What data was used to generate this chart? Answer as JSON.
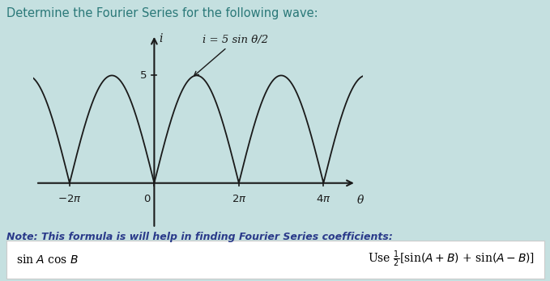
{
  "bg_color": "#c5e0e0",
  "plot_bg_color": "#e2e8e8",
  "title_text": "Determine the Fourier Series for the following wave:",
  "title_color": "#2a7878",
  "title_fontsize": 10.5,
  "wave_color": "#1a1a1a",
  "axis_color": "#1a1a1a",
  "ylabel": "i",
  "xlabel": "θ",
  "xmin": -9.0,
  "xmax": 15.5,
  "ymin": -2.2,
  "ymax": 7.2,
  "note_text": "Note: This formula is will help in finding Fourier Series coefficients:",
  "note_color": "#2a3a8a",
  "annotation_text": "i = 5 sin θ/2",
  "annotation_color": "#1a1a1a",
  "formula_bg": "white",
  "formula_border": "#cccccc"
}
